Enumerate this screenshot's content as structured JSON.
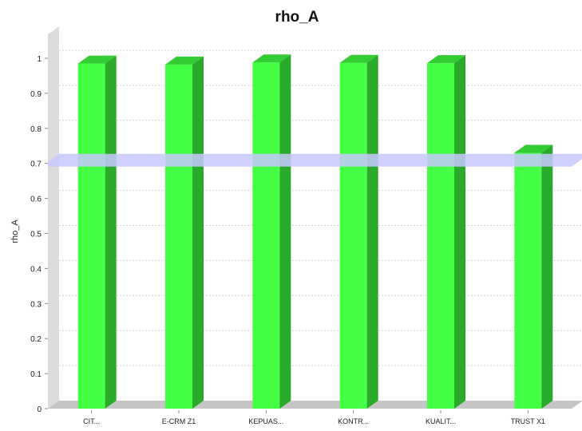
{
  "chart_data": {
    "type": "bar",
    "title": "rho_A",
    "xlabel": "",
    "ylabel": "rho_A",
    "categories": [
      "CIT...",
      "E-CRM Z1",
      "KEPUAS...",
      "KONTR...",
      "KUALIT...",
      "TRUST X1"
    ],
    "series": [
      {
        "values": [
          0.985,
          0.982,
          0.988,
          0.987,
          0.986,
          0.73
        ]
      }
    ],
    "ylim": [
      0,
      1.0
    ],
    "yticks": [
      "0",
      "0.1",
      "0.2",
      "0.3",
      "0.4",
      "0.5",
      "0.6",
      "0.7",
      "0.8",
      "0.9",
      "1"
    ],
    "threshold": 0.7,
    "grid": true,
    "legend": "none",
    "colors": {
      "bar_front": "#44ff44",
      "bar_top": "#33cc33",
      "bar_side": "#2aaa2a",
      "threshold": "#c8c8ff",
      "wall": "#dcdcdc",
      "floor": "#c6c6c6"
    }
  }
}
